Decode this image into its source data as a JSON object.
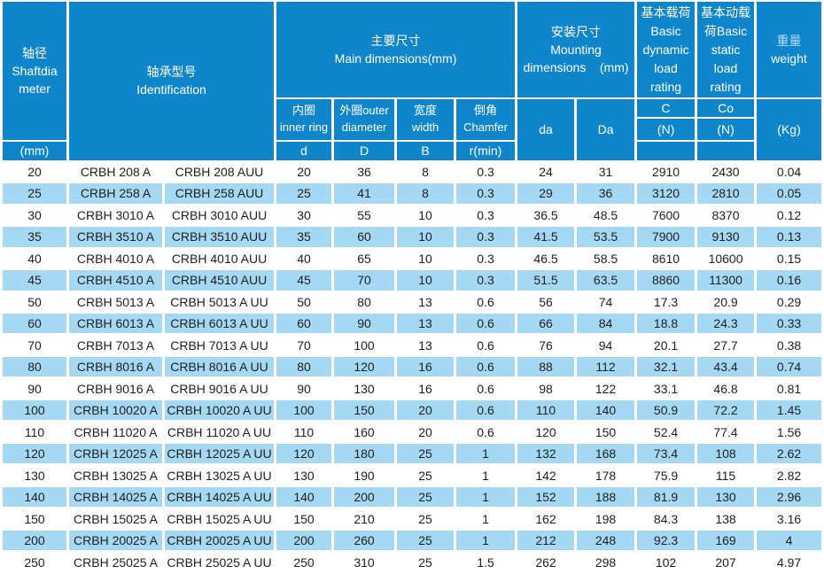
{
  "colors": {
    "header_blue": "#0f86cb",
    "stripe_blue": "#a5d9f3",
    "ink": "#1e1e1e",
    "header_text": "#ffffff",
    "cn_tint": "#b5ddf4"
  },
  "header": {
    "shaft": {
      "cn": "轴径",
      "en1": "Shaftdia",
      "en2": "meter",
      "unit": "(mm)"
    },
    "identification": {
      "cn": "轴承型号",
      "en": "Identification"
    },
    "main_dims": {
      "cn": "主要尺寸",
      "en": "Main dimensions(mm)"
    },
    "inner_ring": {
      "cn": "内圈",
      "en": "inner ring",
      "sym": "d"
    },
    "outer_diameter": {
      "cn": "外圈outer",
      "en": "diameter",
      "sym": "D"
    },
    "width_col": {
      "cn": "宽度",
      "en": "width",
      "sym": "B"
    },
    "chamfer": {
      "cn": "倒角",
      "en": "Chamfer",
      "sym": "r(min)"
    },
    "mounting": {
      "cn": "安装尺寸",
      "en1": "Mounting",
      "en2": "dimensions    (mm)",
      "sub_da": "da",
      "sub_Da": "Da"
    },
    "dynamic_load": {
      "l1": "基本载荷",
      "l2": "Basic",
      "l3": "dynamic",
      "l4": "load",
      "l5": "rating",
      "sym": "C",
      "unit": "(N)"
    },
    "static_load": {
      "l1": "基本动载",
      "l2": "荷Basic",
      "l3": "static",
      "l4": "load",
      "l5": "rating",
      "sym": "Co",
      "unit": "(N)"
    },
    "weight": {
      "cn": "重量",
      "en": "weight",
      "unit": "(Kg)"
    }
  },
  "rows": [
    [
      "20",
      "CRBH 208 A",
      "CRBH 208 AUU",
      "20",
      "36",
      "8",
      "0.3",
      "24",
      "31",
      "2910",
      "2430",
      "0.04"
    ],
    [
      "25",
      "CRBH 258 A",
      "CRBH 258 AUU",
      "25",
      "41",
      "8",
      "0.3",
      "29",
      "36",
      "3120",
      "2810",
      "0.05"
    ],
    [
      "30",
      "CRBH 3010 A",
      "CRBH 3010 AUU",
      "30",
      "55",
      "10",
      "0.3",
      "36.5",
      "48.5",
      "7600",
      "8370",
      "0.12"
    ],
    [
      "35",
      "CRBH 3510 A",
      "CRBH 3510 AUU",
      "35",
      "60",
      "10",
      "0.3",
      "41.5",
      "53.5",
      "7900",
      "9130",
      "0.13"
    ],
    [
      "40",
      "CRBH 4010 A",
      "CRBH 4010 AUU",
      "40",
      "65",
      "10",
      "0.3",
      "46.5",
      "58.5",
      "8610",
      "10600",
      "0.15"
    ],
    [
      "45",
      "CRBH 4510 A",
      "CRBH 4510 AUU",
      "45",
      "70",
      "10",
      "0.3",
      "51.5",
      "63.5",
      "8860",
      "11300",
      "0.16"
    ],
    [
      "50",
      "CRBH 5013 A",
      "CRBH 5013 A UU",
      "50",
      "80",
      "13",
      "0.6",
      "56",
      "74",
      "17.3",
      "20.9",
      "0.29"
    ],
    [
      "60",
      "CRBH 6013 A",
      "CRBH 6013 A UU",
      "60",
      "90",
      "13",
      "0.6",
      "66",
      "84",
      "18.8",
      "24.3",
      "0.33"
    ],
    [
      "70",
      "CRBH 7013 A",
      "CRBH 7013 A UU",
      "70",
      "100",
      "13",
      "0.6",
      "76",
      "94",
      "20.1",
      "27.7",
      "0.38"
    ],
    [
      "80",
      "CRBH 8016 A",
      "CRBH 8016 A UU",
      "80",
      "120",
      "16",
      "0.6",
      "88",
      "112",
      "32.1",
      "43.4",
      "0.74"
    ],
    [
      "90",
      "CRBH 9016 A",
      "CRBH 9016 A UU",
      "90",
      "130",
      "16",
      "0.6",
      "98",
      "122",
      "33.1",
      "46.8",
      "0.81"
    ],
    [
      "100",
      "CRBH 10020 A",
      "CRBH 10020 A UU",
      "100",
      "150",
      "20",
      "0.6",
      "110",
      "140",
      "50.9",
      "72.2",
      "1.45"
    ],
    [
      "110",
      "CRBH 11020 A",
      "CRBH 11020 A UU",
      "110",
      "160",
      "20",
      "0.6",
      "120",
      "150",
      "52.4",
      "77.4",
      "1.56"
    ],
    [
      "120",
      "CRBH 12025 A",
      "CRBH 12025 A UU",
      "120",
      "180",
      "25",
      "1",
      "132",
      "168",
      "73.4",
      "108",
      "2.62"
    ],
    [
      "130",
      "CRBH 13025 A",
      "CRBH 13025 A UU",
      "130",
      "190",
      "25",
      "1",
      "142",
      "178",
      "75.9",
      "115",
      "2.82"
    ],
    [
      "140",
      "CRBH 14025 A",
      "CRBH 14025 A UU",
      "140",
      "200",
      "25",
      "1",
      "152",
      "188",
      "81.9",
      "130",
      "2.96"
    ],
    [
      "150",
      "CRBH 15025 A",
      "CRBH 15025 A UU",
      "150",
      "210",
      "25",
      "1",
      "162",
      "198",
      "84.3",
      "138",
      "3.16"
    ],
    [
      "200",
      "CRBH 20025 A",
      "CRBH 20025 A UU",
      "200",
      "260",
      "25",
      "1",
      "212",
      "248",
      "92.3",
      "169",
      "4"
    ],
    [
      "250",
      "CRBH 25025 A",
      "CRBH 25025 A UU",
      "250",
      "310",
      "25",
      "1.5",
      "262",
      "298",
      "102",
      "207",
      "4.97"
    ]
  ]
}
